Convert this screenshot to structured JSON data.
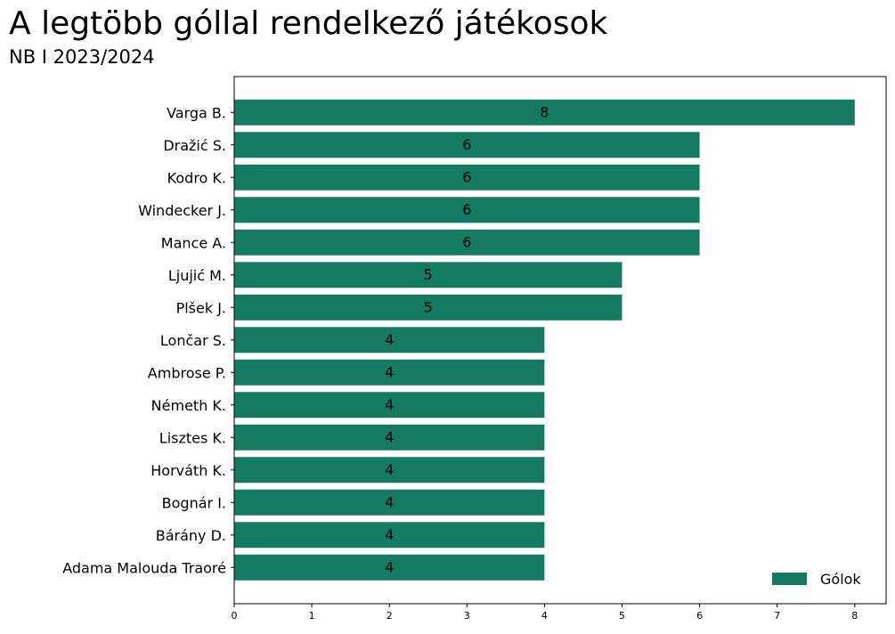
{
  "header": {
    "title": "A legtöbb góllal rendelkező játékosok",
    "subtitle": "NB I 2023/2024"
  },
  "colors": {
    "bar": "#147a62"
  },
  "chart_data": {
    "type": "bar",
    "orientation": "horizontal",
    "title": "A legtöbb góllal rendelkező játékosok",
    "subtitle": "NB I 2023/2024",
    "categories": [
      "Varga B.",
      "Dražić S.",
      "Kodro K.",
      "Windecker J.",
      "Mance A.",
      "Ljujić M.",
      "Plšek J.",
      "Lončar S.",
      "Ambrose P.",
      "Németh K.",
      "Lisztes K.",
      "Horváth K.",
      "Bognár I.",
      "Bárány D.",
      "Adama Malouda Traoré"
    ],
    "series": [
      {
        "name": "Gólok",
        "values": [
          8,
          6,
          6,
          6,
          6,
          5,
          5,
          4,
          4,
          4,
          4,
          4,
          4,
          4,
          4
        ]
      }
    ],
    "xticks": [
      0,
      1,
      2,
      3,
      4,
      5,
      6,
      7,
      8
    ],
    "xlim": [
      0,
      8.4
    ],
    "legend": "bottom-right",
    "grid": false
  }
}
